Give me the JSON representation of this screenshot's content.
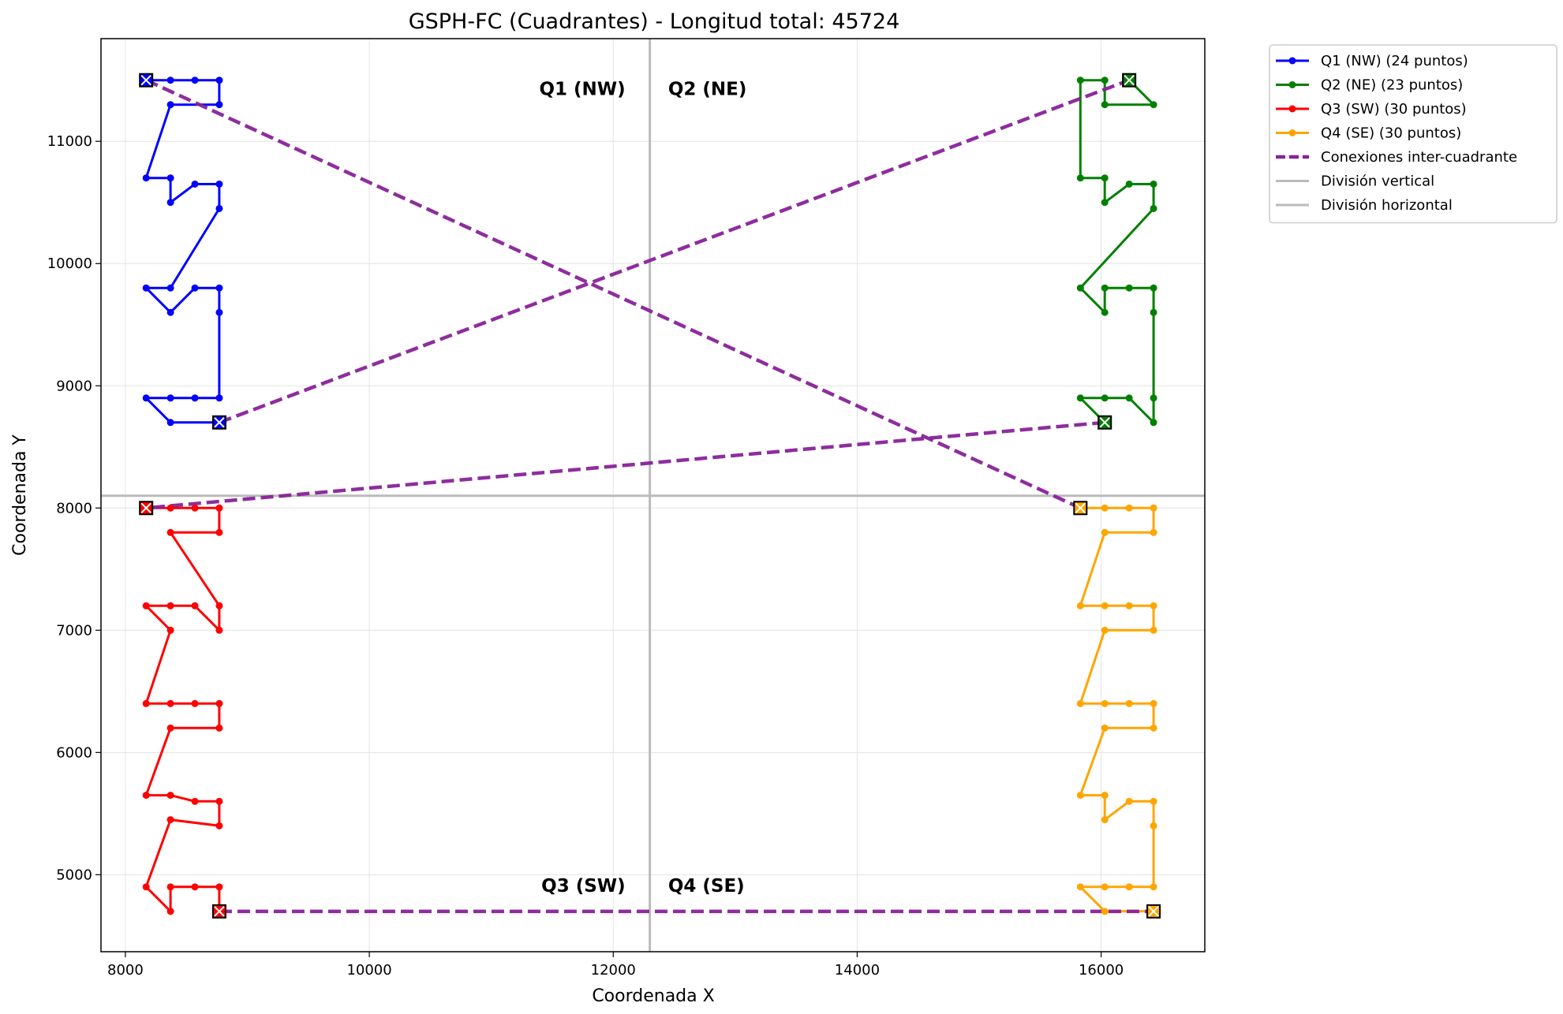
{
  "chart_data": {
    "type": "line",
    "title": "GSPH-FC (Cuadrantes) - Longitud total: 45724",
    "xlabel": "Coordenada X",
    "ylabel": "Coordenada Y",
    "xlim": [
      7800,
      16850
    ],
    "ylim": [
      4370,
      11840
    ],
    "xticks": [
      8000,
      10000,
      12000,
      14000,
      16000
    ],
    "yticks": [
      5000,
      6000,
      7000,
      8000,
      9000,
      10000,
      11000
    ],
    "grid": true,
    "legend_position": "outside-top-right",
    "divisions": {
      "vertical_x": 12300,
      "horizontal_y": 8100,
      "color": "#bbbbbb"
    },
    "quadrant_labels": [
      {
        "text": "Q1 (NW)",
        "x": 12100,
        "y": 11380,
        "anchor": "end"
      },
      {
        "text": "Q2 (NE)",
        "x": 12450,
        "y": 11380,
        "anchor": "start"
      },
      {
        "text": "Q3 (SW)",
        "x": 12100,
        "y": 4860,
        "anchor": "end"
      },
      {
        "text": "Q4 (SE)",
        "x": 12450,
        "y": 4860,
        "anchor": "start"
      }
    ],
    "series": [
      {
        "name": "Q1 (NW) (24 puntos)",
        "color": "#0000ff",
        "start": [
          8170,
          11500
        ],
        "end": [
          8770,
          8700
        ],
        "points": [
          [
            8170,
            11500
          ],
          [
            8370,
            11500
          ],
          [
            8570,
            11500
          ],
          [
            8770,
            11500
          ],
          [
            8770,
            11300
          ],
          [
            8370,
            11300
          ],
          [
            8170,
            10700
          ],
          [
            8370,
            10700
          ],
          [
            8370,
            10500
          ],
          [
            8570,
            10650
          ],
          [
            8770,
            10650
          ],
          [
            8770,
            10450
          ],
          [
            8370,
            9800
          ],
          [
            8170,
            9800
          ],
          [
            8370,
            9600
          ],
          [
            8570,
            9800
          ],
          [
            8770,
            9800
          ],
          [
            8770,
            9600
          ],
          [
            8770,
            8900
          ],
          [
            8570,
            8900
          ],
          [
            8370,
            8900
          ],
          [
            8170,
            8900
          ],
          [
            8370,
            8700
          ],
          [
            8770,
            8700
          ]
        ]
      },
      {
        "name": "Q2 (NE) (23 puntos)",
        "color": "#008000",
        "start": [
          16230,
          11500
        ],
        "end": [
          16030,
          8700
        ],
        "points": [
          [
            16230,
            11500
          ],
          [
            16430,
            11300
          ],
          [
            16030,
            11300
          ],
          [
            16030,
            11500
          ],
          [
            15830,
            11500
          ],
          [
            15830,
            10700
          ],
          [
            16030,
            10700
          ],
          [
            16030,
            10500
          ],
          [
            16230,
            10650
          ],
          [
            16430,
            10650
          ],
          [
            16430,
            10450
          ],
          [
            15830,
            9800
          ],
          [
            16030,
            9600
          ],
          [
            16030,
            9800
          ],
          [
            16230,
            9800
          ],
          [
            16430,
            9800
          ],
          [
            16430,
            9600
          ],
          [
            16430,
            8900
          ],
          [
            16430,
            8700
          ],
          [
            16230,
            8900
          ],
          [
            16030,
            8900
          ],
          [
            15830,
            8900
          ],
          [
            16030,
            8700
          ]
        ]
      },
      {
        "name": "Q3 (SW) (30 puntos)",
        "color": "#ff0000",
        "start": [
          8170,
          8000
        ],
        "end": [
          8770,
          4700
        ],
        "points": [
          [
            8170,
            8000
          ],
          [
            8370,
            8000
          ],
          [
            8570,
            8000
          ],
          [
            8770,
            8000
          ],
          [
            8770,
            7800
          ],
          [
            8370,
            7800
          ],
          [
            8770,
            7200
          ],
          [
            8770,
            7000
          ],
          [
            8570,
            7200
          ],
          [
            8370,
            7200
          ],
          [
            8170,
            7200
          ],
          [
            8370,
            7000
          ],
          [
            8170,
            6400
          ],
          [
            8370,
            6400
          ],
          [
            8570,
            6400
          ],
          [
            8770,
            6400
          ],
          [
            8770,
            6200
          ],
          [
            8370,
            6200
          ],
          [
            8170,
            5650
          ],
          [
            8370,
            5650
          ],
          [
            8570,
            5600
          ],
          [
            8770,
            5600
          ],
          [
            8770,
            5400
          ],
          [
            8370,
            5450
          ],
          [
            8170,
            4900
          ],
          [
            8370,
            4700
          ],
          [
            8370,
            4900
          ],
          [
            8570,
            4900
          ],
          [
            8770,
            4900
          ],
          [
            8770,
            4700
          ]
        ]
      },
      {
        "name": "Q4 (SE) (30 puntos)",
        "color": "#ffa500",
        "start": [
          15830,
          8000
        ],
        "end": [
          16430,
          4700
        ],
        "points": [
          [
            15830,
            8000
          ],
          [
            16030,
            8000
          ],
          [
            16230,
            8000
          ],
          [
            16430,
            8000
          ],
          [
            16430,
            7800
          ],
          [
            16030,
            7800
          ],
          [
            15830,
            7200
          ],
          [
            16030,
            7200
          ],
          [
            16230,
            7200
          ],
          [
            16430,
            7200
          ],
          [
            16430,
            7000
          ],
          [
            16030,
            7000
          ],
          [
            15830,
            6400
          ],
          [
            16030,
            6400
          ],
          [
            16230,
            6400
          ],
          [
            16430,
            6400
          ],
          [
            16430,
            6200
          ],
          [
            16030,
            6200
          ],
          [
            15830,
            5650
          ],
          [
            16030,
            5650
          ],
          [
            16030,
            5450
          ],
          [
            16230,
            5600
          ],
          [
            16430,
            5600
          ],
          [
            16430,
            5400
          ],
          [
            16430,
            4900
          ],
          [
            16230,
            4900
          ],
          [
            16030,
            4900
          ],
          [
            15830,
            4900
          ],
          [
            16030,
            4700
          ],
          [
            16430,
            4700
          ]
        ]
      }
    ],
    "connections": {
      "name": "Conexiones inter-cuadrante",
      "color": "#882299",
      "segments": [
        [
          [
            8170,
            11500
          ],
          [
            15830,
            8000
          ]
        ],
        [
          [
            8770,
            8700
          ],
          [
            16230,
            11500
          ]
        ],
        [
          [
            16030,
            8700
          ],
          [
            8170,
            8000
          ]
        ],
        [
          [
            8770,
            4700
          ],
          [
            16430,
            4700
          ]
        ]
      ]
    },
    "legend": [
      {
        "label": "Q1 (NW) (24 puntos)",
        "color": "#0000ff",
        "style": "line-marker"
      },
      {
        "label": "Q2 (NE) (23 puntos)",
        "color": "#008000",
        "style": "line-marker"
      },
      {
        "label": "Q3 (SW) (30 puntos)",
        "color": "#ff0000",
        "style": "line-marker"
      },
      {
        "label": "Q4 (SE) (30 puntos)",
        "color": "#ffa500",
        "style": "line-marker"
      },
      {
        "label": "Conexiones inter-cuadrante",
        "color": "#882299",
        "style": "dashed"
      },
      {
        "label": "División vertical",
        "color": "#bbbbbb",
        "style": "line"
      },
      {
        "label": "División horizontal",
        "color": "#bbbbbb",
        "style": "line"
      }
    ]
  }
}
